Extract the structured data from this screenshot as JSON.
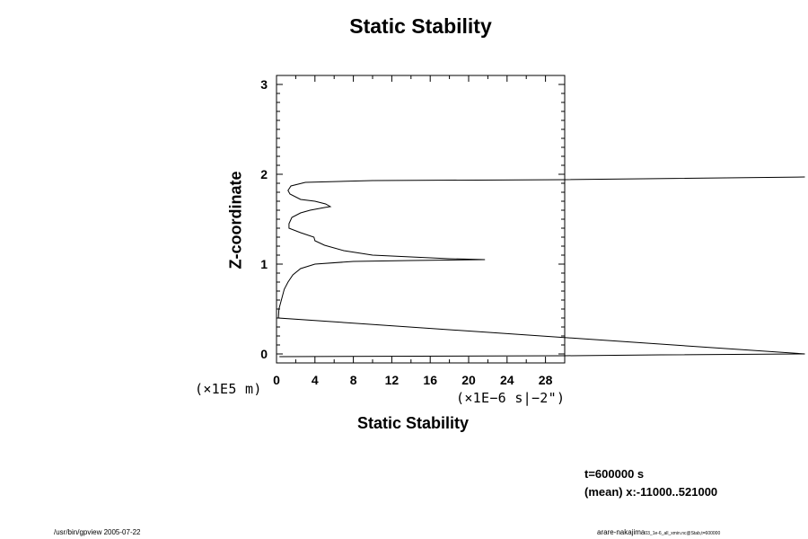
{
  "chart_data": {
    "type": "line",
    "title": "Static Stability",
    "xlabel": "Static Stability",
    "ylabel": "Z-coordinate",
    "x_units": "(×1E−6 s|−2\")",
    "y_units": "(×1E5 m)",
    "xlim": [
      0,
      30
    ],
    "ylim": [
      -0.1,
      3.1
    ],
    "xticks": [
      "0",
      "4",
      "8",
      "12",
      "16",
      "20",
      "24",
      "28"
    ],
    "yticks": [
      "0",
      "1",
      "2",
      "3"
    ],
    "grid": false,
    "series": [
      {
        "points": [
          [
            0.3,
            -0.03
          ],
          [
            30,
            -0.02
          ],
          [
            40,
            -0.01
          ],
          [
            55,
            0.0
          ],
          [
            0.2,
            0.4
          ],
          [
            0.25,
            0.5
          ],
          [
            0.5,
            0.6
          ],
          [
            0.8,
            0.72
          ],
          [
            1.2,
            0.8
          ],
          [
            1.7,
            0.88
          ],
          [
            2.5,
            0.95
          ],
          [
            4.0,
            1.0
          ],
          [
            8.0,
            1.03
          ],
          [
            14.0,
            1.04
          ],
          [
            21.7,
            1.05
          ],
          [
            18.0,
            1.06
          ],
          [
            10.0,
            1.1
          ],
          [
            7.0,
            1.15
          ],
          [
            5.0,
            1.21
          ],
          [
            4.0,
            1.26
          ],
          [
            3.9,
            1.3
          ],
          [
            2.5,
            1.35
          ],
          [
            1.3,
            1.4
          ],
          [
            1.3,
            1.45
          ],
          [
            1.6,
            1.52
          ],
          [
            2.5,
            1.57
          ],
          [
            3.5,
            1.6
          ],
          [
            5.0,
            1.63
          ],
          [
            5.6,
            1.64
          ],
          [
            5.1,
            1.67
          ],
          [
            4.0,
            1.7
          ],
          [
            2.5,
            1.72
          ],
          [
            1.4,
            1.78
          ],
          [
            1.2,
            1.82
          ],
          [
            1.5,
            1.87
          ],
          [
            3.0,
            1.91
          ],
          [
            10.0,
            1.93
          ],
          [
            30.0,
            1.94
          ],
          [
            55,
            1.97
          ]
        ]
      }
    ]
  },
  "annotations": {
    "time": "t=600000 s",
    "mean": "(mean) x:-11000..521000"
  },
  "footer": {
    "left": "/usr/bin/gpview 2005-07-22",
    "right_main": "arare-nakajima",
    "right_small": "03_1e-6_all_xmin.nc@Stab,t=600000"
  }
}
